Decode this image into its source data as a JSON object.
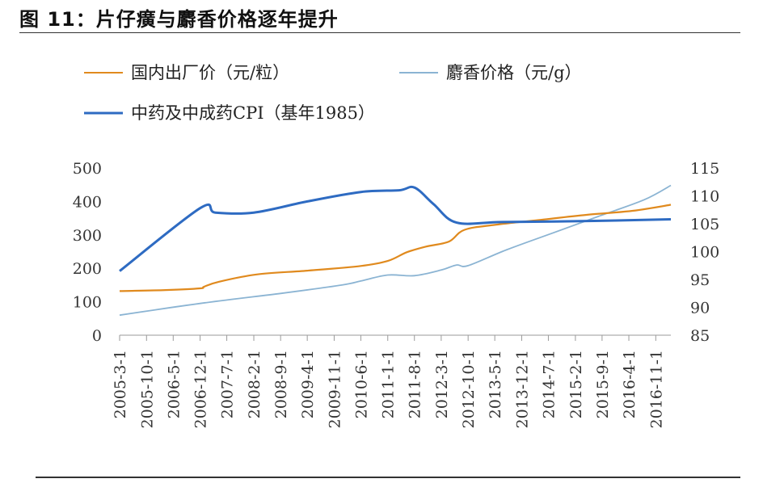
{
  "title": "图 11：片仔癀与麝香价格逐年提升",
  "colors": {
    "series_0": "#E08A1E",
    "series_1": "#8BB4D3",
    "series_2": "#2E6BC2",
    "axis": "#9a9a9a"
  },
  "chart_data": {
    "type": "line",
    "title": "",
    "xlabel": "",
    "ylabel": "",
    "legend_position": "top",
    "grid": false,
    "y_left": {
      "lim": [
        0,
        500
      ],
      "ticks": [
        0,
        100,
        200,
        300,
        400,
        500
      ]
    },
    "y_right": {
      "lim": [
        85,
        115
      ],
      "ticks": [
        85,
        90,
        95,
        100,
        105,
        110,
        115
      ]
    },
    "x_tick_labels": [
      "2005-3-1",
      "2005-10-1",
      "2006-5-1",
      "2006-12-1",
      "2007-7-1",
      "2008-2-1",
      "2008-9-1",
      "2009-4-1",
      "2009-11-1",
      "2010-6-1",
      "2011-1-1",
      "2011-8-1",
      "2012-3-1",
      "2012-10-1",
      "2013-5-1",
      "2013-12-1",
      "2014-7-1",
      "2015-2-1",
      "2015-9-1",
      "2016-4-1",
      "2016-11-1"
    ],
    "series": [
      {
        "name": "国内出厂价（元/粒）",
        "axis": "left",
        "x": [
          "2005-3-1",
          "2006-3-1",
          "2006-12-1",
          "2007-1-1",
          "2007-5-1",
          "2008-3-1",
          "2009-4-1",
          "2010-6-1",
          "2011-1-1",
          "2011-6-1",
          "2011-11-1",
          "2012-5-1",
          "2012-9-1",
          "2013-5-1",
          "2014-5-1",
          "2015-5-1",
          "2016-5-1",
          "2017-3-1"
        ],
        "values": [
          132,
          135,
          140,
          145,
          160,
          182,
          193,
          207,
          222,
          248,
          265,
          280,
          315,
          330,
          345,
          360,
          372,
          390
        ]
      },
      {
        "name": "麝香价格（元/g）",
        "axis": "left",
        "x": [
          "2005-3-1",
          "2006-12-1",
          "2008-9-1",
          "2010-1-1",
          "2010-6-1",
          "2011-1-1",
          "2011-8-1",
          "2012-3-1",
          "2012-7-1",
          "2012-10-1",
          "2013-8-1",
          "2014-8-1",
          "2015-8-1",
          "2016-8-1",
          "2017-3-1"
        ],
        "values": [
          60,
          95,
          125,
          150,
          162,
          180,
          178,
          195,
          210,
          208,
          255,
          305,
          355,
          405,
          448
        ]
      },
      {
        "name": "中药及中成药CPI（基年1985）",
        "axis": "right",
        "x": [
          "2005-3-1",
          "2006-12-1",
          "2007-4-1",
          "2008-2-1",
          "2009-4-1",
          "2010-6-1",
          "2011-4-1",
          "2011-8-1",
          "2012-1-1",
          "2012-7-1",
          "2013-7-1",
          "2015-7-1",
          "2017-3-1"
        ],
        "values": [
          96.5,
          107.8,
          107.0,
          107.0,
          109.0,
          110.7,
          111.0,
          111.5,
          108.5,
          105.2,
          105.3,
          105.5,
          105.8
        ]
      }
    ]
  }
}
